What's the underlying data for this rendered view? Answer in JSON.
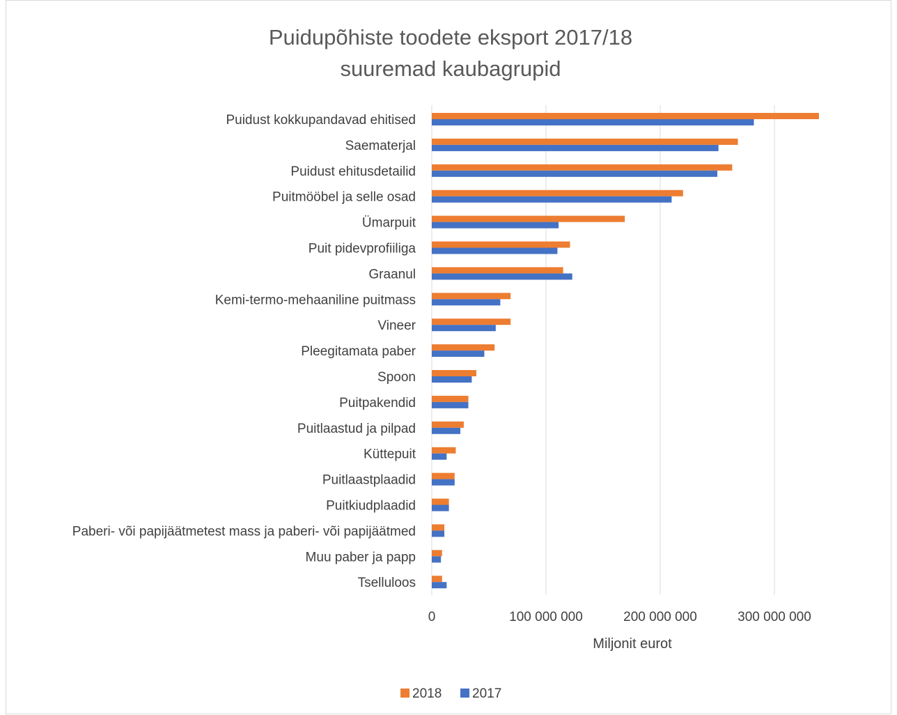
{
  "chart_data": {
    "type": "bar",
    "orientation": "horizontal",
    "title_lines": [
      "Puidupõhiste toodete eksport 2017/18",
      "suuremad kaubagrupid"
    ],
    "xlabel": "Miljonit eurot",
    "ylabel": "",
    "xlim": [
      0,
      340000000
    ],
    "xticks": [
      0,
      100000000,
      200000000,
      300000000
    ],
    "xtick_labels": [
      "0",
      "100 000 000",
      "200 000 000",
      "300 000 000"
    ],
    "grid": true,
    "legend_position": "bottom",
    "categories": [
      "Puidust kokkupandavad ehitised",
      "Saematerjal",
      "Puidust ehitusdetailid",
      "Puitmööbel ja selle osad",
      "Ümarpuit",
      "Puit pidevprofiiliga",
      "Graanul",
      "Kemi-termo-mehaaniline puitmass",
      "Vineer",
      "Pleegitamata paber",
      "Spoon",
      "Puitpakendid",
      "Puitlaastud ja pilpad",
      "Küttepuit",
      "Puitlaastplaadid",
      "Puitkiudplaadid",
      "Paberi- või papijäätmetest mass ja paberi- või papijäätmed",
      "Muu paber ja papp",
      "Tselluloos"
    ],
    "series": [
      {
        "name": "2018",
        "color": "#ed7d31",
        "values": [
          339000000,
          268000000,
          263000000,
          220000000,
          169000000,
          121000000,
          115000000,
          69000000,
          69000000,
          55000000,
          39000000,
          32000000,
          28000000,
          21000000,
          20000000,
          15000000,
          11000000,
          9000000,
          9000000
        ]
      },
      {
        "name": "2017",
        "color": "#4472c4",
        "values": [
          282000000,
          251000000,
          250000000,
          210000000,
          111000000,
          110000000,
          123000000,
          60000000,
          56000000,
          46000000,
          35000000,
          32000000,
          25000000,
          13000000,
          20000000,
          15000000,
          11000000,
          8000000,
          13000000
        ]
      }
    ]
  }
}
